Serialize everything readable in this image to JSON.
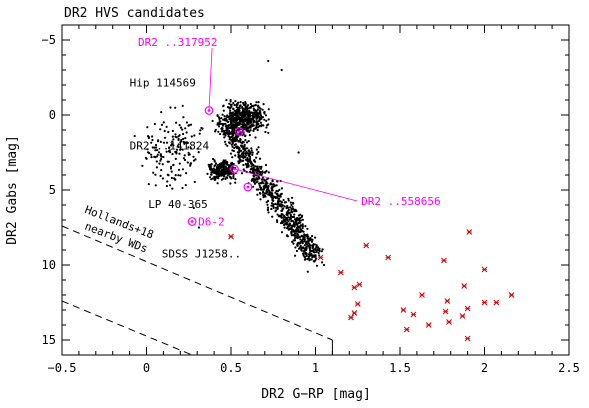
{
  "chart_data": {
    "type": "scatter",
    "title": "DR2 HVS candidates",
    "xlabel": "DR2 G−RP [mag]",
    "ylabel": "DR2 Gabs [mag]",
    "xlim": [
      -0.5,
      2.5
    ],
    "ylim": [
      16,
      -6
    ],
    "y_inverted": true,
    "x_ticks": [
      -0.5,
      0,
      0.5,
      1,
      1.5,
      2,
      2.5
    ],
    "x_tick_labels": [
      "−0.5",
      "0",
      "0.5",
      "1",
      "1.5",
      "2",
      "2.5"
    ],
    "y_ticks": [
      -5,
      0,
      5,
      10,
      15
    ],
    "y_tick_labels": [
      "−5",
      "0",
      "5",
      "10",
      "15"
    ],
    "grid": false,
    "colors": {
      "background_stars": "#000000",
      "hvs_candidates": "#cc0000",
      "highlight": "#ff00ff"
    },
    "series": [
      {
        "style": "black dots (thousands of points, sampled)",
        "clusters": [
          {
            "note": "giant/turnoff clump",
            "x_range": [
              0.35,
              0.85
            ],
            "y_range": [
              -3.0,
              2.5
            ]
          },
          {
            "note": "subgiant band",
            "x_range": [
              0.25,
              0.65
            ],
            "y_range": [
              1.5,
              6.0
            ]
          },
          {
            "note": "lower main sequence",
            "x_range": [
              0.55,
              1.1
            ],
            "y_range": [
              4.5,
              10.2
            ]
          },
          {
            "note": "blue scattered field",
            "x_range": [
              -0.1,
              0.4
            ],
            "y_range": [
              -1.5,
              9.0
            ]
          }
        ],
        "sample_points": [
          {
            "x": -0.07,
            "y": 1.4
          },
          {
            "x": 0.05,
            "y": 0.6
          },
          {
            "x": 0.1,
            "y": 2.8
          },
          {
            "x": 0.15,
            "y": 4.2
          },
          {
            "x": 0.22,
            "y": 1.8
          },
          {
            "x": 0.28,
            "y": 6.2
          },
          {
            "x": 0.31,
            "y": 7.5
          },
          {
            "x": 0.9,
            "y": 2.5
          },
          {
            "x": 1.0,
            "y": 9.0
          },
          {
            "x": 1.05,
            "y": 10.0
          },
          {
            "x": 0.72,
            "y": -3.6
          },
          {
            "x": 0.8,
            "y": -3.0
          }
        ]
      },
      {
        "style": "red crosses (HVS candidates)",
        "points": [
          {
            "x": 0.5,
            "y": 8.1
          },
          {
            "x": 1.03,
            "y": 9.5
          },
          {
            "x": 1.15,
            "y": 10.5
          },
          {
            "x": 1.3,
            "y": 8.7
          },
          {
            "x": 1.43,
            "y": 9.5
          },
          {
            "x": 1.52,
            "y": 13.0
          },
          {
            "x": 1.58,
            "y": 13.3
          },
          {
            "x": 1.23,
            "y": 11.5
          },
          {
            "x": 1.26,
            "y": 11.3
          },
          {
            "x": 1.25,
            "y": 12.6
          },
          {
            "x": 1.23,
            "y": 13.2
          },
          {
            "x": 1.21,
            "y": 13.5
          },
          {
            "x": 1.54,
            "y": 14.3
          },
          {
            "x": 1.63,
            "y": 12.0
          },
          {
            "x": 1.67,
            "y": 14.0
          },
          {
            "x": 1.76,
            "y": 9.7
          },
          {
            "x": 1.78,
            "y": 12.4
          },
          {
            "x": 1.77,
            "y": 13.1
          },
          {
            "x": 1.79,
            "y": 13.8
          },
          {
            "x": 1.88,
            "y": 11.4
          },
          {
            "x": 1.87,
            "y": 13.4
          },
          {
            "x": 1.9,
            "y": 12.9
          },
          {
            "x": 1.91,
            "y": 7.8
          },
          {
            "x": 1.9,
            "y": 14.9
          },
          {
            "x": 2.0,
            "y": 10.3
          },
          {
            "x": 2.0,
            "y": 12.5
          },
          {
            "x": 2.07,
            "y": 12.5
          },
          {
            "x": 2.16,
            "y": 12.0
          }
        ]
      }
    ],
    "highlighted_points": [
      {
        "label": "DR2 ..317952",
        "x": 0.37,
        "y": -0.3
      },
      {
        "label": "",
        "x": 0.55,
        "y": 1.1
      },
      {
        "label": "DR2 ..558656",
        "x": 0.52,
        "y": 3.6
      },
      {
        "label": "",
        "x": 0.6,
        "y": 4.8
      },
      {
        "label": "D6-2",
        "x": 0.27,
        "y": 7.1
      }
    ],
    "annotations": [
      {
        "text": "Hip 114569",
        "x": -0.1,
        "y": -1.9,
        "color": "#000000"
      },
      {
        "text": "DR2 ..141824",
        "x": -0.1,
        "y": 2.3,
        "color": "#000000"
      },
      {
        "text": "LP 40-365",
        "x": 0.01,
        "y": 6.2,
        "color": "#000000"
      },
      {
        "text": "SDSS J1258..",
        "x": 0.09,
        "y": 9.5,
        "color": "#000000"
      },
      {
        "text": "DR2 ..317952",
        "x": -0.05,
        "y": -4.6,
        "color": "#ff00ff",
        "points_to": 0
      },
      {
        "text": "DR2 ..558656",
        "x": 1.27,
        "y": 6.0,
        "color": "#ff00ff",
        "points_to": 2
      },
      {
        "text": "Hollands+18",
        "x": -0.37,
        "y": 6.5,
        "color": "#000000",
        "rotate": 21
      },
      {
        "text": "nearby WDs",
        "x": -0.37,
        "y": 7.6,
        "color": "#000000",
        "rotate": 21
      }
    ],
    "reference_lines": [
      {
        "style": "dashed",
        "from": {
          "x": -0.5,
          "y": 7.4
        },
        "to": {
          "x": 1.1,
          "y": 15.0
        }
      },
      {
        "style": "vertical",
        "from": {
          "x": 1.1,
          "y": 15.0
        },
        "to": {
          "x": 1.1,
          "y": 16.0
        }
      },
      {
        "style": "dashed",
        "from": {
          "x": -0.5,
          "y": 12.4
        },
        "to": {
          "x": 0.27,
          "y": 16.0
        }
      }
    ]
  }
}
